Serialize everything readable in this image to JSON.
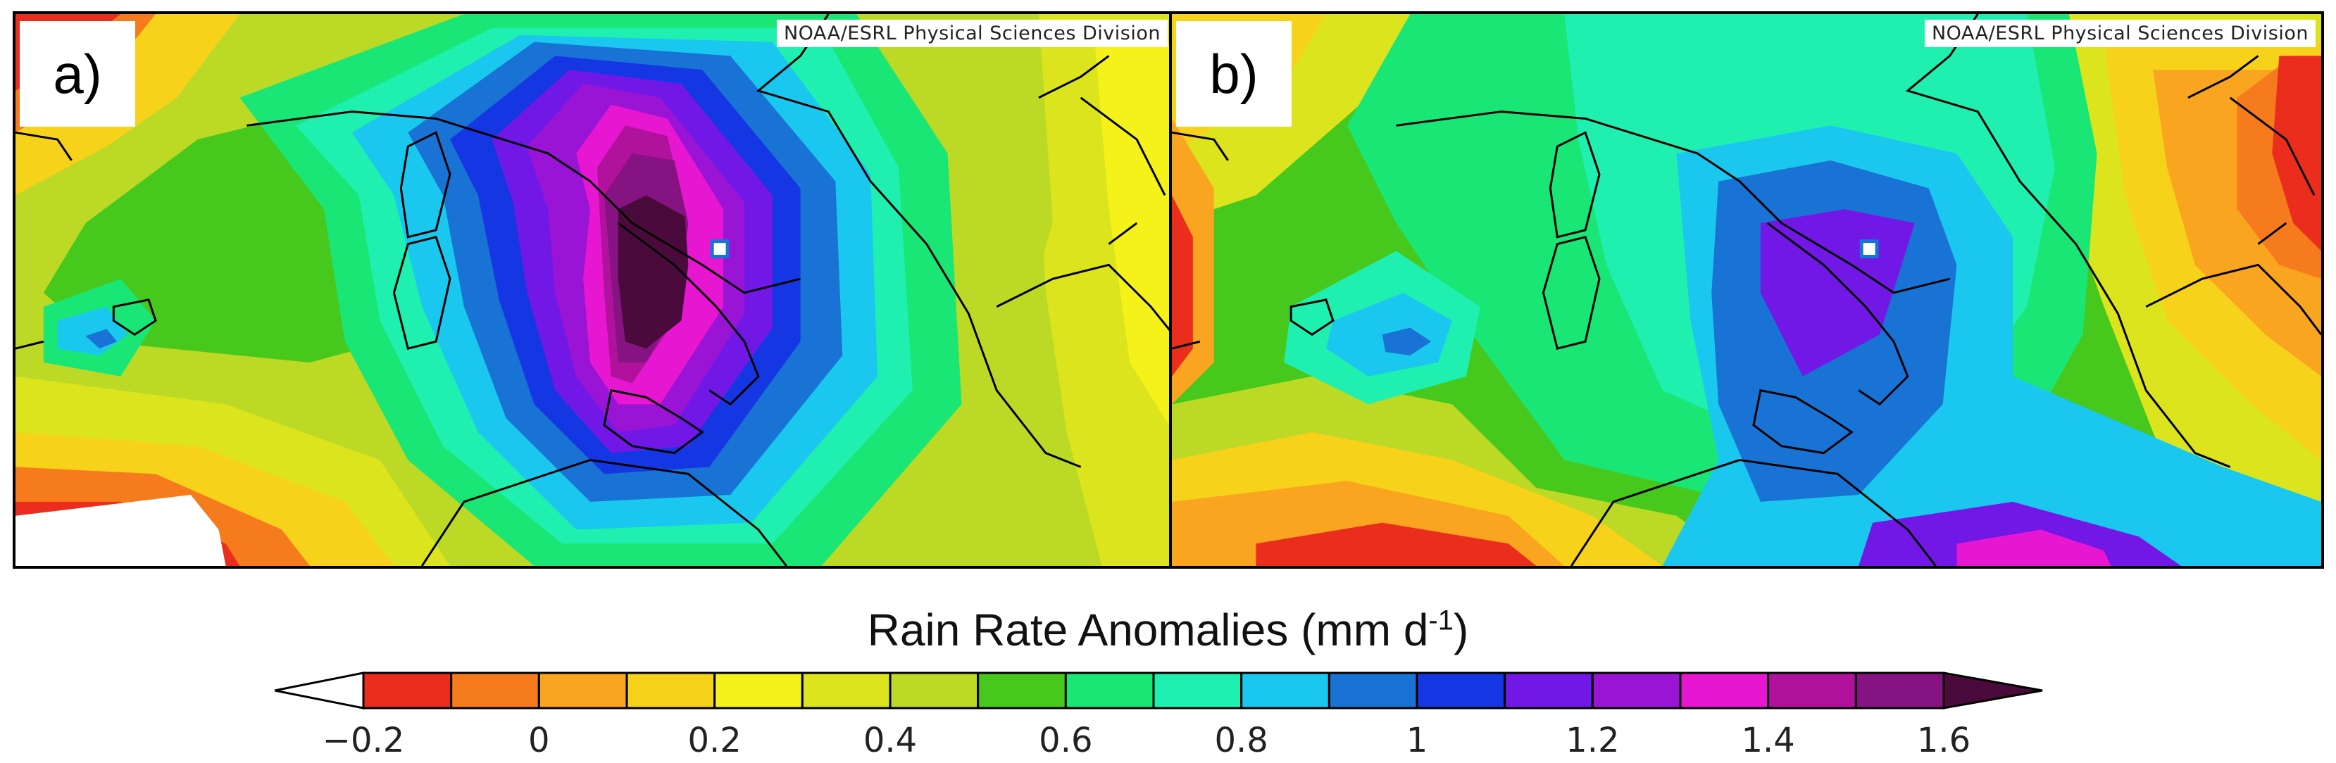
{
  "panels": [
    {
      "label": "a)",
      "credit": "NOAA/ESRL Physical Sciences Division"
    },
    {
      "label": "b)",
      "credit": "NOAA/ESRL Physical Sciences Division"
    }
  ],
  "colorbar": {
    "title": "Rain Rate Anomalies (mm d",
    "title_sup": "-1",
    "title_close": ")",
    "tick_labels": [
      "−0.2",
      "0",
      "0.2",
      "0.4",
      "0.6",
      "0.8",
      "1",
      "1.2",
      "1.4",
      "1.6"
    ],
    "colors": [
      "#ea2d1c",
      "#f57b1c",
      "#faa51f",
      "#f7d21b",
      "#f5f21a",
      "#dbe41c",
      "#bcd925",
      "#47c81d",
      "#19e675",
      "#1ff0b0",
      "#1ac8ef",
      "#1873d5",
      "#1537e3",
      "#7218e6",
      "#9a14d6",
      "#e616d1",
      "#b0129c",
      "#861382"
    ],
    "under_color": "#ffffff",
    "over_color": "#4a0a3c"
  },
  "legend_colors": {
    "c_-0.2": "#ea2d1c",
    "c_-0.1": "#f57b1c",
    "c_0": "#faa51f",
    "c_0.1": "#f7d21b",
    "c_0.2": "#f5f21a",
    "c_0.3": "#dbe41c",
    "c_0.4": "#bcd925",
    "c_0.5": "#47c81d",
    "c_0.6": "#19e675",
    "c_0.7": "#1ff0b0",
    "c_0.8": "#1ac8ef",
    "c_0.9": "#1873d5",
    "c_1.0": "#1537e3",
    "c_1.1": "#7218e6",
    "c_1.2": "#9a14d6",
    "c_1.3": "#e616d1",
    "c_1.4": "#b0129c",
    "c_1.5": "#861382",
    "c_1.6": "#4a0a3c"
  }
}
